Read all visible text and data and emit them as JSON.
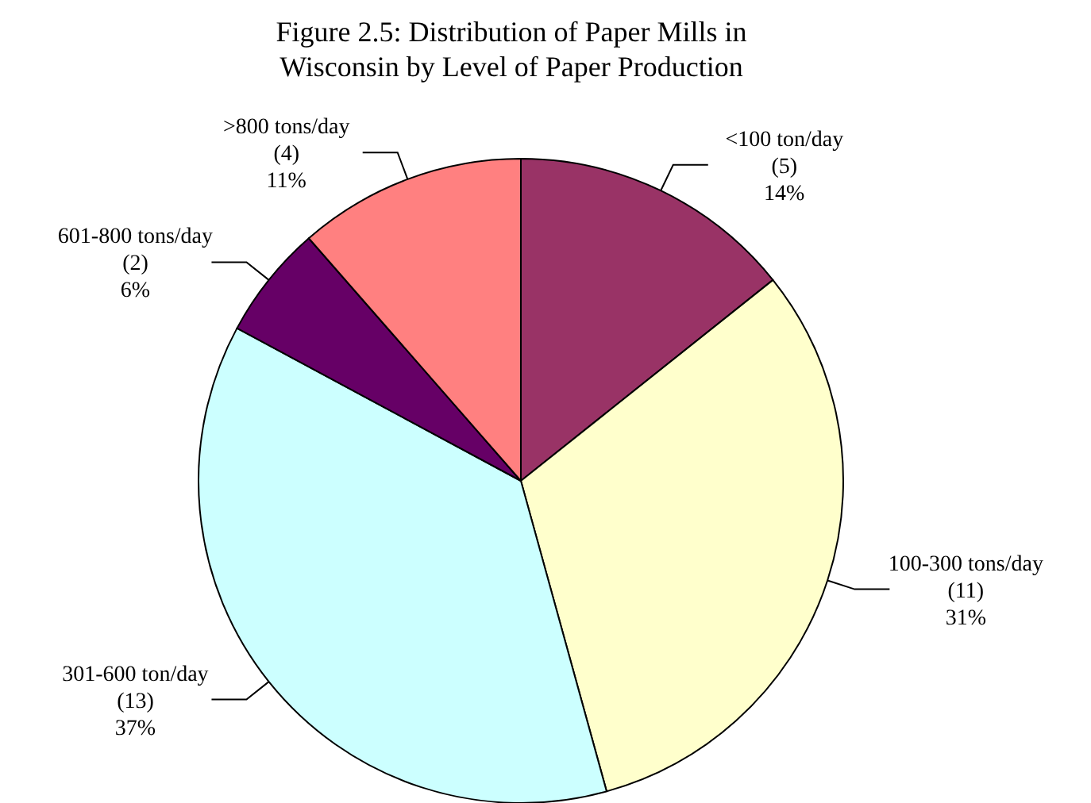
{
  "chart_data": {
    "type": "pie",
    "title": "Figure 2.5:  Distribution of Paper Mills in\nWisconsin by Level of Paper Production",
    "categories": [
      "<100 ton/day",
      "100-300 tons/day",
      "301-600 ton/day",
      "601-800 tons/day",
      ">800 tons/day"
    ],
    "values": [
      5,
      11,
      13,
      2,
      4
    ],
    "value_labels": [
      "(5)\n14%",
      "(11)\n31%",
      "(13)\n37%",
      "(2)\n6%",
      "(4)\n11%"
    ],
    "colors": [
      "#993366",
      "#ffffcc",
      "#ccffff",
      "#660066",
      "#ff8080"
    ]
  }
}
